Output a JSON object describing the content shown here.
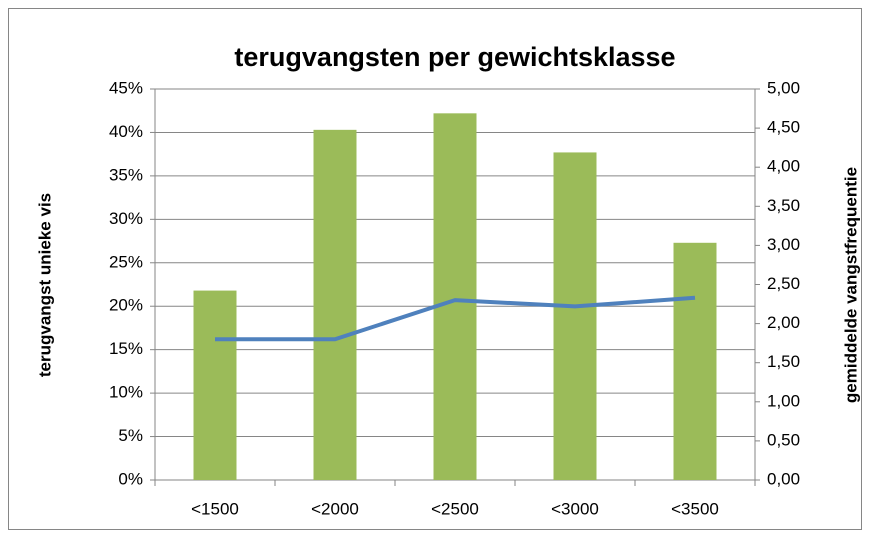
{
  "chart_data": {
    "type": "bar-line",
    "title": "terugvangsten per gewichtsklasse",
    "y_label": "terugvangst unieke vis",
    "y2_label": "gemiddelde vangstfrequentie",
    "categories": [
      "<1500",
      "<2000",
      "<2500",
      "<3000",
      "<3500"
    ],
    "series": [
      {
        "type": "bar",
        "color": "#9bbb59",
        "values": [
          21.8,
          40.3,
          42.2,
          37.7,
          27.3
        ]
      },
      {
        "type": "line",
        "axis": "y2",
        "color": "#4f81bd",
        "values": [
          1.8,
          1.8,
          2.3,
          2.22,
          2.33
        ]
      }
    ],
    "ylim": [
      0,
      45
    ],
    "yticks": [
      {
        "value": 0,
        "label": "0%"
      },
      {
        "value": 5,
        "label": "5%"
      },
      {
        "value": 10,
        "label": "10%"
      },
      {
        "value": 15,
        "label": "15%"
      },
      {
        "value": 20,
        "label": "20%"
      },
      {
        "value": 25,
        "label": "25%"
      },
      {
        "value": 30,
        "label": "30%"
      },
      {
        "value": 35,
        "label": "35%"
      },
      {
        "value": 40,
        "label": "40%"
      },
      {
        "value": 45,
        "label": "45%"
      }
    ],
    "y2lim": [
      0,
      5
    ],
    "y2ticks": [
      {
        "value": 0,
        "label": "0,00"
      },
      {
        "value": 0.5,
        "label": "0,50"
      },
      {
        "value": 1,
        "label": "1,00"
      },
      {
        "value": 1.5,
        "label": "1,50"
      },
      {
        "value": 2,
        "label": "2,00"
      },
      {
        "value": 2.5,
        "label": "2,50"
      },
      {
        "value": 3,
        "label": "3,00"
      },
      {
        "value": 3.5,
        "label": "3,50"
      },
      {
        "value": 4,
        "label": "4,00"
      },
      {
        "value": 4.5,
        "label": "4,50"
      },
      {
        "value": 5,
        "label": "5,00"
      }
    ],
    "grid": true
  }
}
